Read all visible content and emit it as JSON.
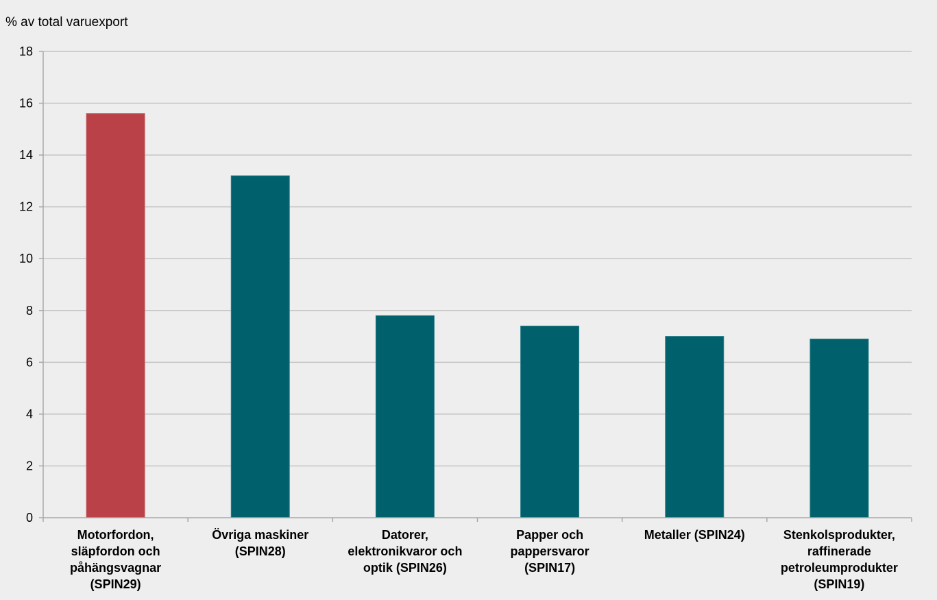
{
  "chart_data": {
    "type": "bar",
    "title": "",
    "xlabel": "",
    "ylabel": "% av total varuexport",
    "ylim": [
      0,
      18
    ],
    "yticks": [
      "0",
      "2",
      "4",
      "6",
      "8",
      "10",
      "12",
      "14",
      "16",
      "18"
    ],
    "grid": true,
    "legend": "none",
    "categories": [
      [
        "Motorfordon,",
        "släpfordon och",
        "påhängsvagnar",
        "(SPIN29)"
      ],
      [
        "Övriga maskiner",
        "(SPIN28)"
      ],
      [
        "Datorer,",
        "elektronikvaror och",
        "optik (SPIN26)"
      ],
      [
        "Papper och",
        "pappersvaror",
        "(SPIN17)"
      ],
      [
        "Metaller (SPIN24)"
      ],
      [
        "Stenkolsprodukter,",
        "raffinerade",
        "petroleumprodukter",
        "(SPIN19)"
      ]
    ],
    "values": [
      15.6,
      13.2,
      7.8,
      7.4,
      7.0,
      6.9
    ],
    "colors": {
      "highlight": "#b94147",
      "default": "#00606b",
      "background": "#eeeeee",
      "grid": "#c4c4c4"
    },
    "bar_colors": [
      "highlight",
      "default",
      "default",
      "default",
      "default",
      "default"
    ]
  }
}
